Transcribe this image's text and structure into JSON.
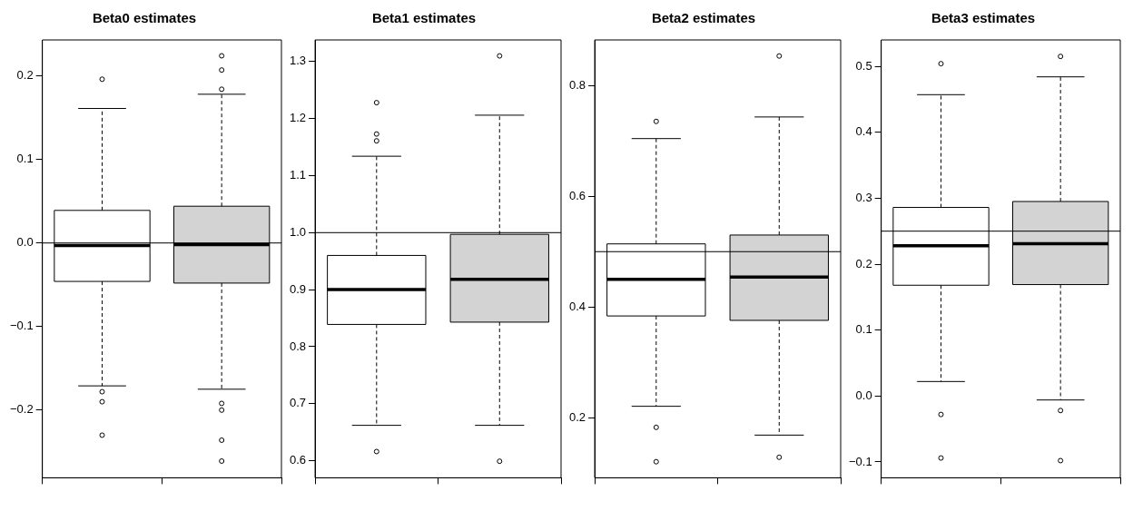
{
  "chart_data": [
    {
      "type": "box",
      "title": "Beta0 estimates",
      "categories": [
        null,
        null
      ],
      "colors": [
        "#ffffff",
        "#d3d3d3"
      ],
      "ylim": [
        -0.281,
        0.243
      ],
      "yticks": [
        {
          "value": -0.2,
          "label": "−0.2"
        },
        {
          "value": -0.1,
          "label": "−0.1"
        },
        {
          "value": 0,
          "label": "0.0"
        },
        0.1,
        0.2
      ],
      "grid": false,
      "boxes": [
        {
          "low": -0.171,
          "q1": -0.046,
          "median": -0.003,
          "q3": 0.039,
          "high": 0.161,
          "outliers": [
            0.196,
            -0.178,
            -0.19,
            -0.23
          ]
        },
        {
          "low": -0.175,
          "q1": -0.048,
          "median": -0.002,
          "q3": 0.044,
          "high": 0.178,
          "outliers": [
            0.224,
            0.207,
            0.184,
            -0.192,
            -0.2,
            -0.236,
            -0.261
          ]
        }
      ],
      "ref_lines": [
        {
          "axis": "y",
          "value": 0
        }
      ]
    },
    {
      "type": "box",
      "title": "Beta1 estimates",
      "categories": [
        null,
        null
      ],
      "colors": [
        "#ffffff",
        "#d3d3d3"
      ],
      "ylim": [
        0.57,
        1.338
      ],
      "yticks": [
        0.6,
        0.7,
        0.8,
        0.9,
        {
          "value": 1,
          "label": "1.0"
        },
        1.1,
        1.2,
        1.3
      ],
      "grid": false,
      "boxes": [
        {
          "low": 0.662,
          "q1": 0.839,
          "median": 0.9,
          "q3": 0.96,
          "high": 1.134,
          "outliers": [
            1.228,
            1.173,
            1.161,
            0.616
          ]
        },
        {
          "low": 0.662,
          "q1": 0.843,
          "median": 0.918,
          "q3": 0.997,
          "high": 1.206,
          "outliers": [
            1.31,
            0.599
          ]
        }
      ],
      "ref_lines": [
        {
          "axis": "y",
          "value": 1
        }
      ]
    },
    {
      "type": "box",
      "title": "Beta2 estimates",
      "categories": [
        null,
        null
      ],
      "colors": [
        "#ffffff",
        "#d3d3d3"
      ],
      "ylim": [
        0.092,
        0.882
      ],
      "yticks": [
        0.2,
        0.4,
        0.6,
        0.8
      ],
      "grid": false,
      "boxes": [
        {
          "low": 0.221,
          "q1": 0.384,
          "median": 0.45,
          "q3": 0.514,
          "high": 0.704,
          "outliers": [
            0.735,
            0.183,
            0.121
          ]
        },
        {
          "low": 0.169,
          "q1": 0.376,
          "median": 0.454,
          "q3": 0.53,
          "high": 0.743,
          "outliers": [
            0.853,
            0.129
          ]
        }
      ],
      "ref_lines": [
        {
          "axis": "y",
          "value": 0.5
        }
      ]
    },
    {
      "type": "box",
      "title": "Beta3 estimates",
      "categories": [
        null,
        null
      ],
      "colors": [
        "#ffffff",
        "#d3d3d3"
      ],
      "ylim": [
        -0.124,
        0.54
      ],
      "yticks": [
        {
          "value": -0.1,
          "label": "−0.1"
        },
        {
          "value": 0,
          "label": "0.0"
        },
        0.1,
        0.2,
        0.3,
        0.4,
        0.5
      ],
      "grid": false,
      "boxes": [
        {
          "low": 0.022,
          "q1": 0.168,
          "median": 0.228,
          "q3": 0.286,
          "high": 0.457,
          "outliers": [
            0.504,
            -0.028,
            -0.094
          ]
        },
        {
          "low": -0.006,
          "q1": 0.169,
          "median": 0.231,
          "q3": 0.295,
          "high": 0.484,
          "outliers": [
            0.515,
            -0.022,
            -0.098
          ]
        }
      ],
      "ref_lines": [
        {
          "axis": "y",
          "value": 0.25
        }
      ]
    }
  ]
}
